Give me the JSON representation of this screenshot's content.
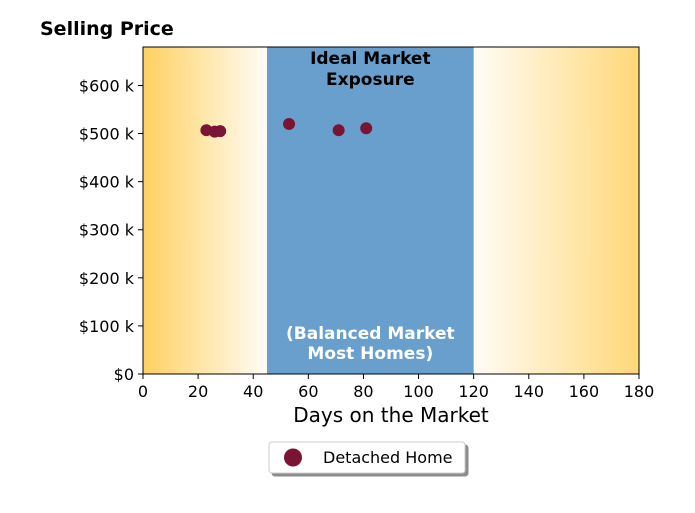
{
  "chart_data": {
    "type": "scatter",
    "ylabel": "Selling Price",
    "xlabel": "Days on the Market",
    "xlim": [
      0,
      180
    ],
    "ylim": [
      0,
      680000
    ],
    "xticks": [
      0,
      20,
      40,
      60,
      80,
      100,
      120,
      140,
      160,
      180
    ],
    "xtick_labels": [
      "0",
      "20",
      "40",
      "60",
      "80",
      "100",
      "120",
      "140",
      "160",
      "180"
    ],
    "yticks": [
      0,
      100000,
      200000,
      300000,
      400000,
      500000,
      600000
    ],
    "ytick_labels": [
      "$0",
      "$100 k",
      "$200 k",
      "$300 k",
      "$400 k",
      "$500 k",
      "$600 k"
    ],
    "ideal_band": {
      "x_start": 45,
      "x_end": 120,
      "label_top": [
        "Ideal Market",
        "Exposure"
      ],
      "label_bottom": [
        "(Balanced Market",
        "Most Homes)"
      ],
      "color": "#689fcc"
    },
    "side_gradient_color": "#ffd060",
    "series": [
      {
        "name": "Detached Home",
        "color": "#7a1434",
        "points": [
          {
            "x": 23,
            "y": 507000
          },
          {
            "x": 26,
            "y": 504000
          },
          {
            "x": 28,
            "y": 505000
          },
          {
            "x": 53,
            "y": 520000
          },
          {
            "x": 71,
            "y": 507000
          },
          {
            "x": 81,
            "y": 511000
          }
        ]
      }
    ],
    "grid": false,
    "legend_position": "bottom-center"
  }
}
